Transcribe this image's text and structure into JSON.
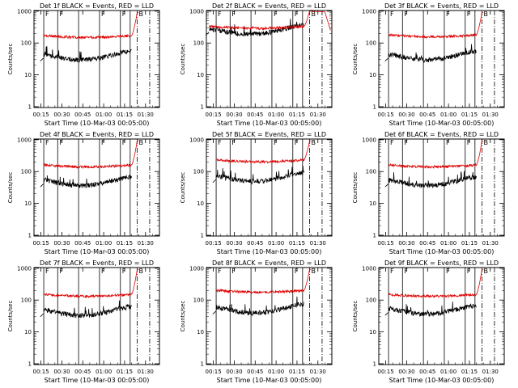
{
  "figure": {
    "x_title": "Start Time (10-Mar-03 00:05:00)",
    "y_title": "Counts/sec",
    "x_ticks": [
      "00:15",
      "00:30",
      "00:45",
      "01:00",
      "01:15",
      "01:30"
    ],
    "y_ticks": [
      "1",
      "10",
      "100",
      "1000"
    ],
    "colors": {
      "events": "#000000",
      "lld": "#e00000",
      "axes": "#000000"
    }
  },
  "chart_data": [
    {
      "type": "line",
      "title": "Det 1f BLACK = Events, RED = LLD",
      "ylim": [
        1,
        1000
      ],
      "xlim_minutes": [
        10,
        100
      ],
      "start_minute": 17,
      "lld_level": 170,
      "events_level": 45,
      "lld_end": 900,
      "segment_markers": [
        "F",
        "F",
        "F",
        "F",
        "B"
      ]
    },
    {
      "type": "line",
      "title": "Det 2f BLACK = Events, RED = LLD",
      "ylim": [
        1,
        1000
      ],
      "xlim_minutes": [
        10,
        100
      ],
      "start_minute": 12,
      "lld_level": 330,
      "events_level": 290,
      "lld_end": 1000,
      "segment_markers": [
        "F",
        "F",
        "F",
        "F",
        "B"
      ]
    },
    {
      "type": "line",
      "title": "Det 3f BLACK = Events, RED = LLD",
      "ylim": [
        1,
        1000
      ],
      "xlim_minutes": [
        10,
        100
      ],
      "start_minute": 17,
      "lld_level": 180,
      "events_level": 45,
      "lld_end": 900,
      "segment_markers": [
        "F",
        "F",
        "F",
        "F",
        "B"
      ]
    },
    {
      "type": "line",
      "title": "Det 4f BLACK = Events, RED = LLD",
      "ylim": [
        1,
        1000
      ],
      "xlim_minutes": [
        10,
        100
      ],
      "start_minute": 17,
      "lld_level": 160,
      "events_level": 55,
      "lld_end": 900,
      "segment_markers": [
        "F",
        "F",
        "F",
        "F",
        "B"
      ]
    },
    {
      "type": "line",
      "title": "Det 5f BLACK = Events, RED = LLD",
      "ylim": [
        1,
        1000
      ],
      "xlim_minutes": [
        10,
        100
      ],
      "start_minute": 17,
      "lld_level": 230,
      "events_level": 75,
      "lld_end": 900,
      "segment_markers": [
        "F",
        "F",
        "F",
        "F",
        "B"
      ]
    },
    {
      "type": "line",
      "title": "Det 6f BLACK = Events, RED = LLD",
      "ylim": [
        1,
        1000
      ],
      "xlim_minutes": [
        10,
        100
      ],
      "start_minute": 17,
      "lld_level": 160,
      "events_level": 55,
      "lld_end": 900,
      "segment_markers": [
        "F",
        "F",
        "F",
        "F",
        "B"
      ]
    },
    {
      "type": "line",
      "title": "Det 7f BLACK = Events, RED = LLD",
      "ylim": [
        1,
        1000
      ],
      "xlim_minutes": [
        10,
        100
      ],
      "start_minute": 17,
      "lld_level": 150,
      "events_level": 50,
      "lld_end": 900,
      "segment_markers": [
        "F",
        "F",
        "F",
        "F",
        "B"
      ]
    },
    {
      "type": "line",
      "title": "Det 8f BLACK = Events, RED = LLD",
      "ylim": [
        1,
        1000
      ],
      "xlim_minutes": [
        10,
        100
      ],
      "start_minute": 17,
      "lld_level": 200,
      "events_level": 60,
      "lld_end": 900,
      "segment_markers": [
        "F",
        "F",
        "F",
        "F",
        "B"
      ]
    },
    {
      "type": "line",
      "title": "Det 9f BLACK = Events, RED = LLD",
      "ylim": [
        1,
        1000
      ],
      "xlim_minutes": [
        10,
        100
      ],
      "start_minute": 17,
      "lld_level": 150,
      "events_level": 55,
      "lld_end": 900,
      "segment_markers": [
        "F",
        "F",
        "F",
        "F",
        "B"
      ]
    }
  ],
  "boundaries": {
    "segment_minutes": [
      17,
      27,
      42,
      57,
      72,
      79
    ],
    "dashdot_minutes": [
      84,
      93
    ]
  }
}
